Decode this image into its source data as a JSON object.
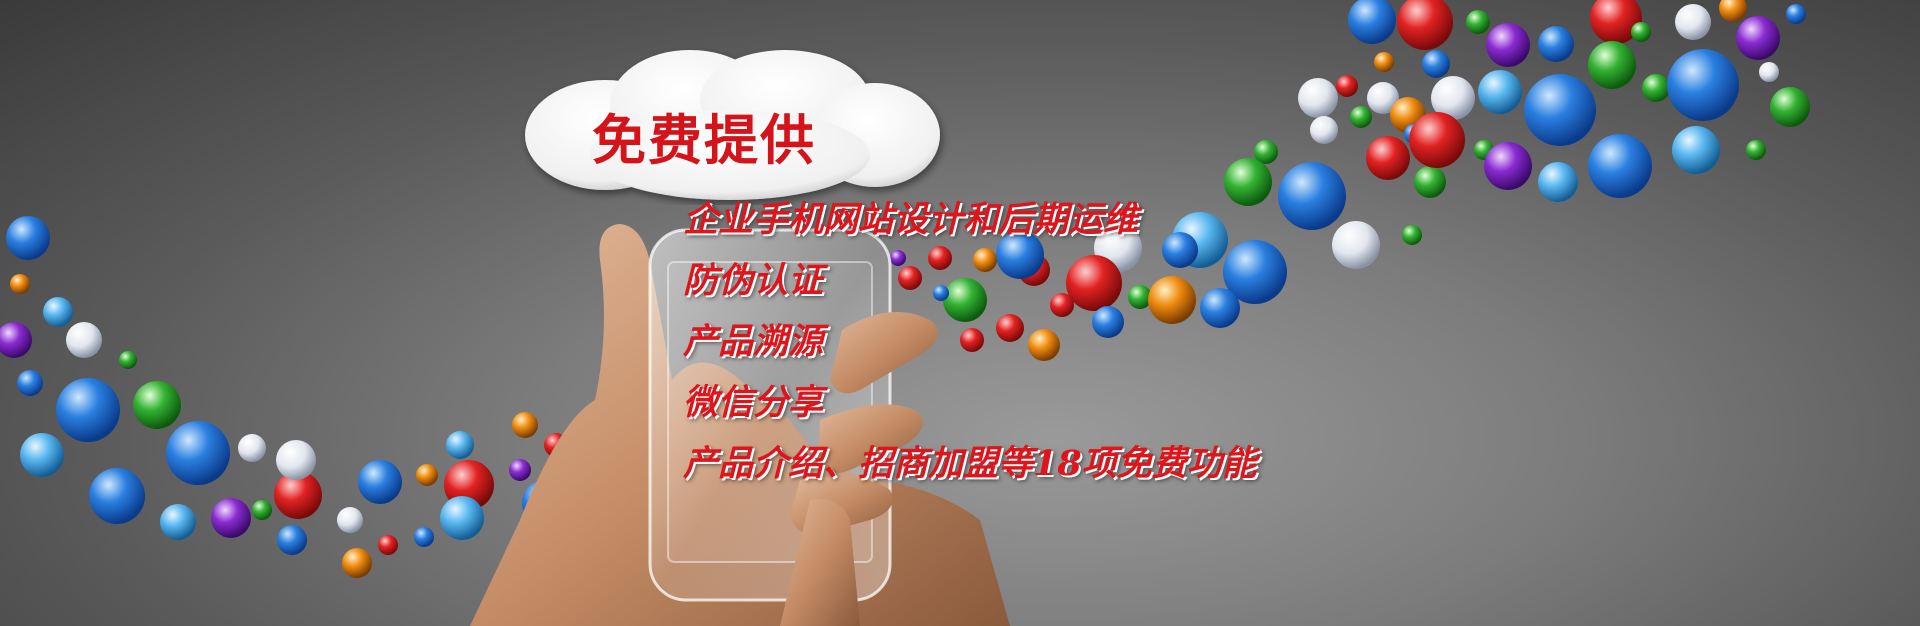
{
  "banner": {
    "cloud_title": "免费提供",
    "features": [
      "企业手机网站设计和后期运维",
      "防伪认证",
      "产品溯源",
      "微信分享",
      "产品介绍、招商加盟等18项免费功能"
    ]
  },
  "colors": {
    "headline_red": "#d4141a",
    "feature_red": "#e0141b",
    "background": "#6e6e6e"
  },
  "icons": [
    "baidu-icon",
    "sina-weibo-icon",
    "qq-icon",
    "at-mail-icon",
    "blog-icon",
    "youku-icon",
    "gear-icon",
    "shield-icon",
    "star-icon",
    "bookmark-icon",
    "wifi-icon",
    "feed-icon",
    "globe-icon"
  ]
}
